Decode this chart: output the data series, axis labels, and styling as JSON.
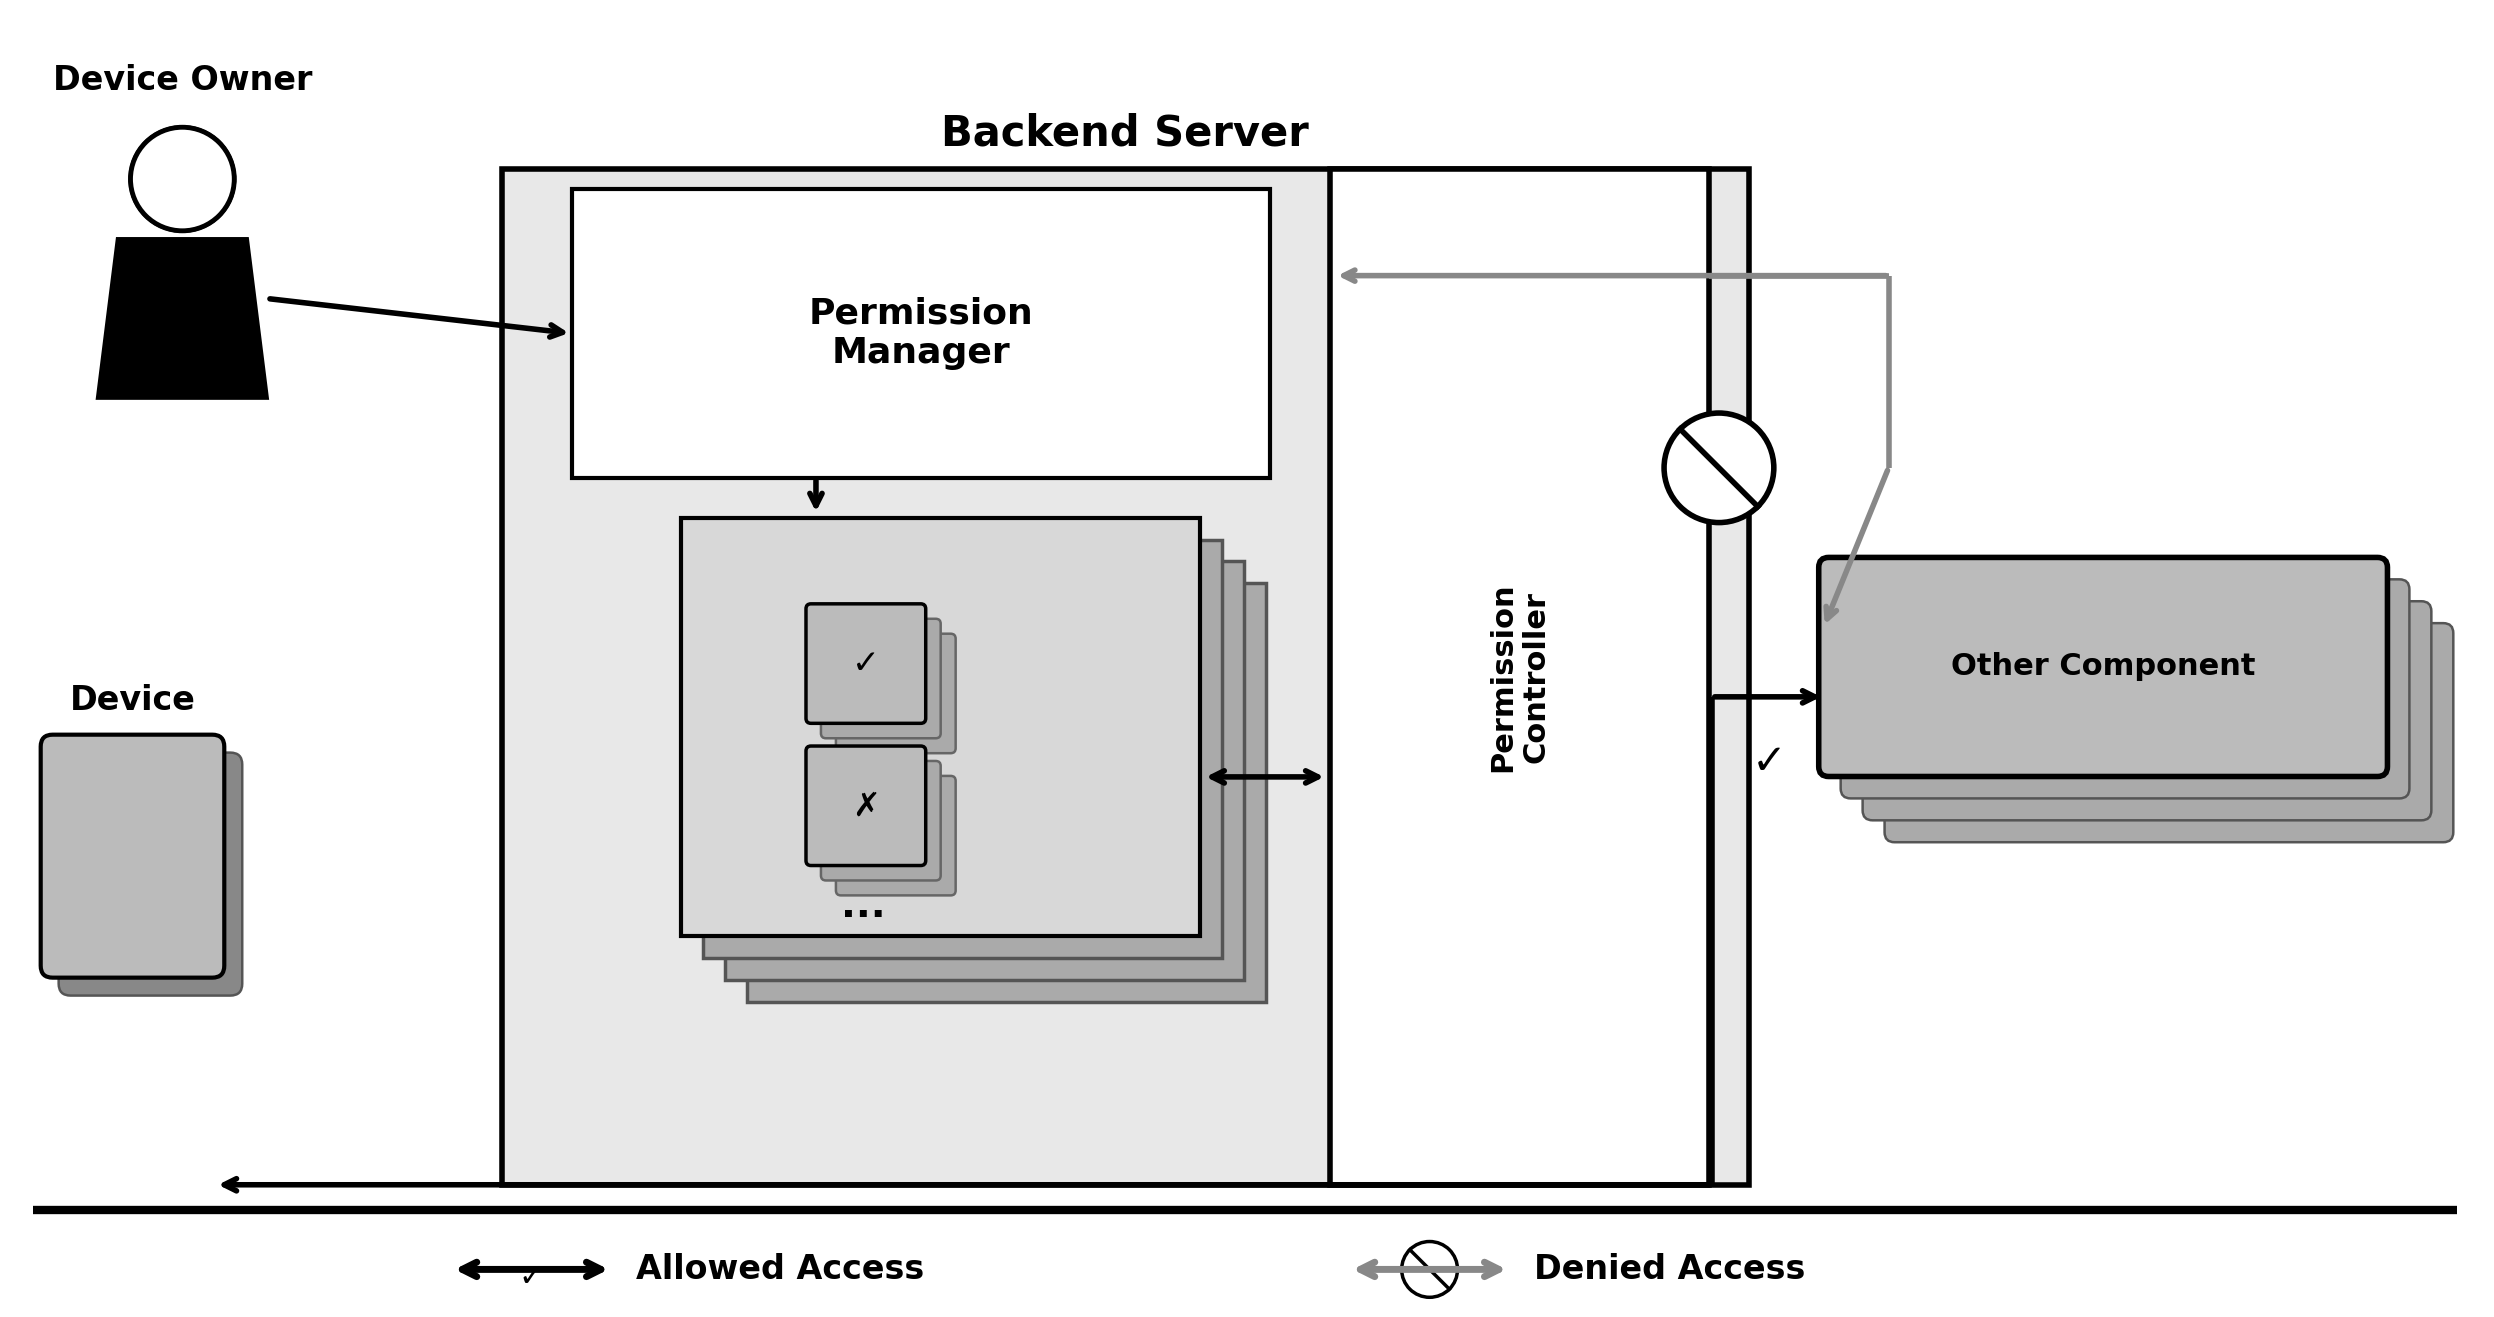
{
  "bg_color": "#ffffff",
  "title": "Backend Server",
  "device_owner_label": "Device Owner",
  "device_label": "Device",
  "permission_manager_label": "Permission\nManager",
  "permission_controller_label": "Permission\nController",
  "other_component_label": "Other Component",
  "allowed_access_label": "Allowed Access",
  "denied_access_label": "Denied Access",
  "black": "#000000",
  "gray": "#888888",
  "light_gray": "#cccccc",
  "dark_gray": "#555555"
}
